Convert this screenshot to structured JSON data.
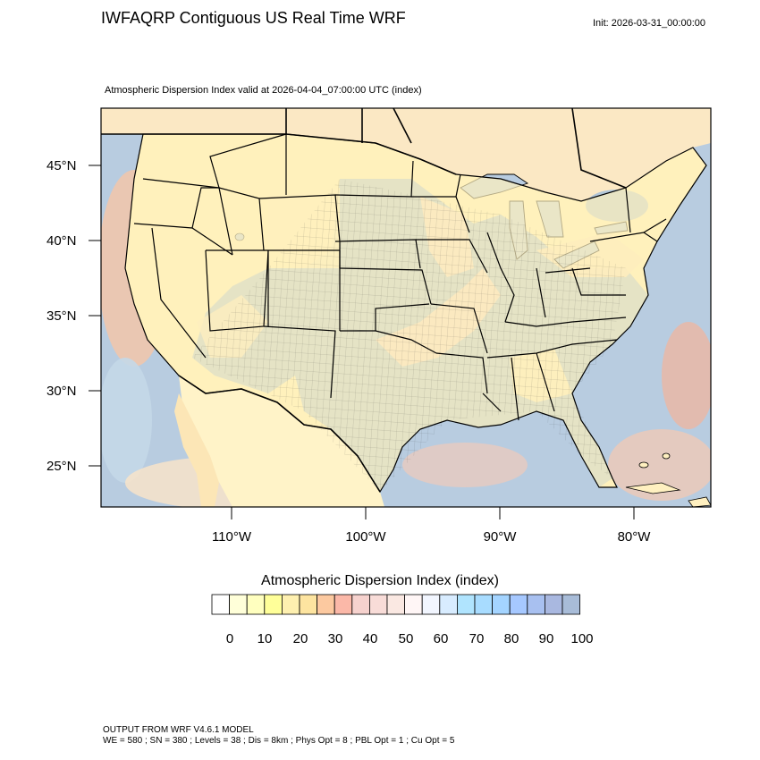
{
  "header": {
    "title": "IWFAQRP Contiguous US Real Time WRF",
    "init": "Init: 2026-03-31_00:00:00",
    "subtitle": "Atmospheric Dispersion Index valid at 2026-04-04_07:00:00 UTC   (index)"
  },
  "map": {
    "latitude_labels": [
      "45°N",
      "40°N",
      "35°N",
      "30°N",
      "25°N"
    ],
    "longitude_labels": [
      "110°W",
      "100°W",
      "90°W",
      "80°W"
    ],
    "colors": {
      "ocean": "#b4c8dc",
      "low_index": "#fff2b8",
      "mid_index": "#f5d0c0",
      "high_index": "#a7bfd8",
      "hot": "#f3a98a"
    }
  },
  "colorbar": {
    "title": "Atmospheric Dispersion Index  (index)",
    "tick_labels": [
      "0",
      "10",
      "20",
      "30",
      "40",
      "50",
      "60",
      "70",
      "80",
      "90",
      "100"
    ],
    "colors": [
      "#ffffff",
      "#ffffd9",
      "#ffffbf",
      "#ffff99",
      "#fef0b0",
      "#fde4a0",
      "#fcc9a0",
      "#fbb8a8",
      "#f6d2ce",
      "#f8dcd8",
      "#fae8e2",
      "#fff6f6",
      "#f2f6ff",
      "#d8ecff",
      "#b0e4fe",
      "#a8dcff",
      "#a4d4ff",
      "#a6c8ff",
      "#a8c0f0",
      "#a9b8e0",
      "#a8bcd8"
    ]
  },
  "footer": {
    "line1": "OUTPUT FROM WRF V4.6.1 MODEL",
    "line2": "WE = 580 ; SN = 380 ; Levels = 38 ; Dis = 8km ; Phys Opt = 8 ; PBL Opt = 1 ; Cu Opt = 5"
  }
}
